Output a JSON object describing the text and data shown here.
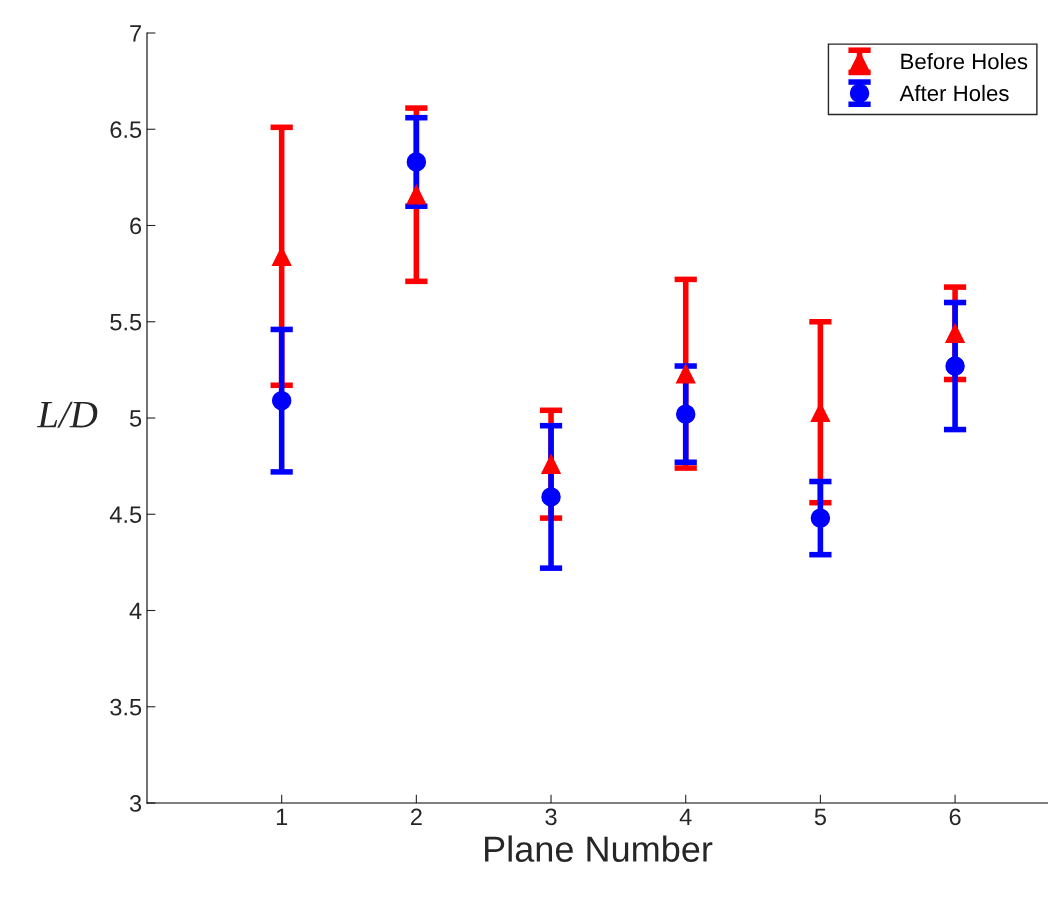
{
  "chart_data": {
    "type": "scatter",
    "xlabel": "Plane Number",
    "ylabel": "L/D",
    "x": [
      1,
      2,
      3,
      4,
      5,
      6
    ],
    "series": [
      {
        "name": "Before Holes",
        "color": "#ff0000",
        "marker": "triangle",
        "values": [
          5.84,
          6.16,
          4.76,
          5.23,
          5.03,
          5.44
        ],
        "errors": [
          0.67,
          0.45,
          0.28,
          0.49,
          0.47,
          0.24
        ]
      },
      {
        "name": "After Holes",
        "color": "#0000ff",
        "marker": "circle",
        "values": [
          5.09,
          6.33,
          4.59,
          5.02,
          4.48,
          5.27
        ],
        "errors": [
          0.37,
          0.23,
          0.37,
          0.25,
          0.19,
          0.33
        ]
      }
    ],
    "xlim": [
      0,
      6.69
    ],
    "xticks": [
      1,
      2,
      3,
      4,
      5,
      6
    ],
    "ylim": [
      3,
      7
    ],
    "yticks": [
      3,
      3.5,
      4,
      4.5,
      5,
      5.5,
      6,
      6.5,
      7
    ],
    "grid": false,
    "legend": "top right"
  }
}
